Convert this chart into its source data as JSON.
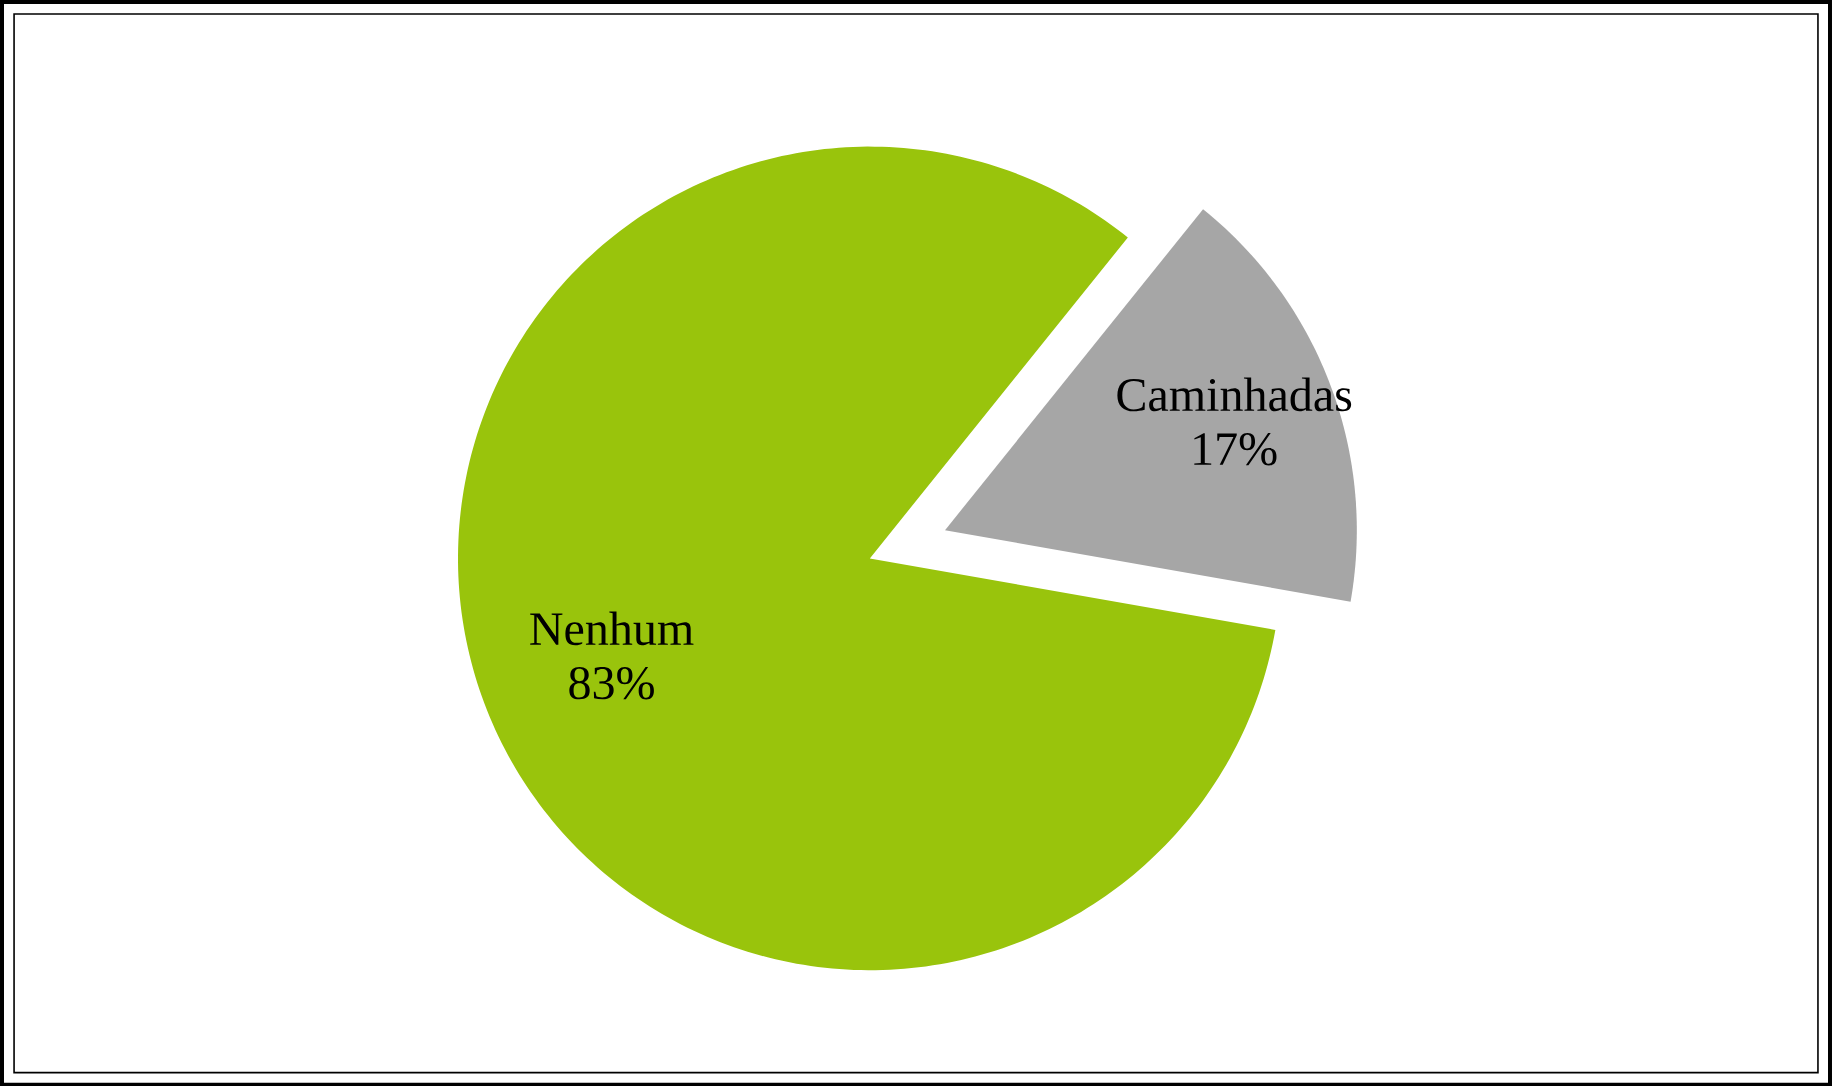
{
  "chart_data": {
    "type": "pie",
    "categories": [
      "Caminhadas",
      "Nenhum"
    ],
    "values": [
      17,
      83
    ],
    "value_labels": [
      "17%",
      "83%"
    ],
    "colors": [
      "#a6a6a6",
      "#99c40c"
    ]
  }
}
